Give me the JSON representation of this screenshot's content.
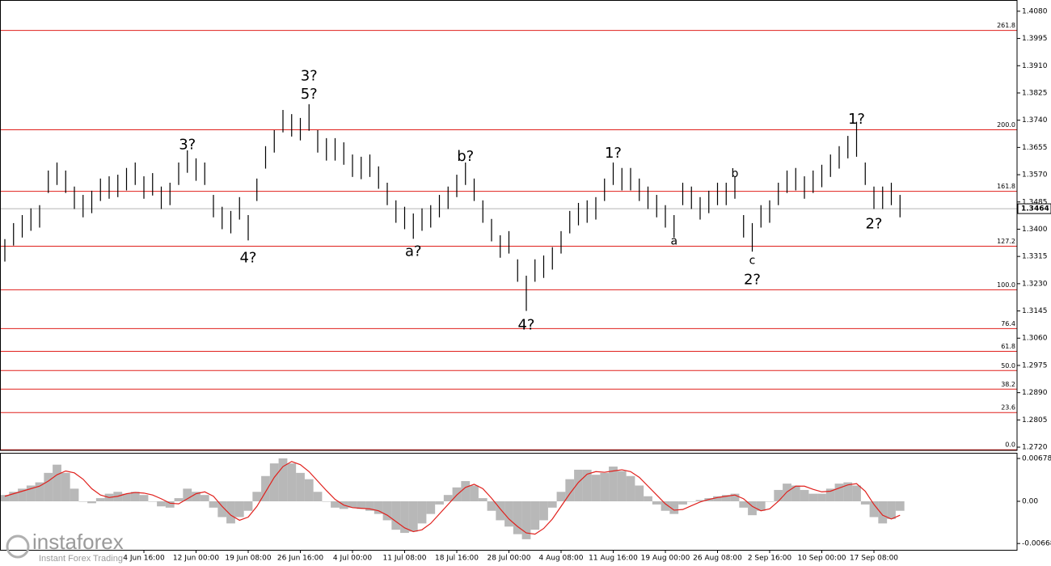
{
  "chart_data": [
    {
      "type": "ohlc",
      "color": "#000000",
      "ylim": [
        1.271,
        1.4115
      ],
      "yticks": [
        {
          "value": 1.408,
          "label": "1.4080"
        },
        1.3995,
        {
          "value": 1.391,
          "label": "1.3910"
        },
        1.3825,
        {
          "value": 1.374,
          "label": "1.3740"
        },
        1.3655,
        {
          "value": 1.357,
          "label": "1.3570"
        },
        1.3485,
        {
          "value": 1.34,
          "label": "1.3400"
        },
        1.3315,
        {
          "value": 1.323,
          "label": "1.3230"
        },
        1.3145,
        {
          "value": 1.306,
          "label": "1.3060"
        },
        1.2975,
        {
          "value": 1.289,
          "label": "1.2890"
        },
        1.2805,
        {
          "value": 1.272,
          "label": "1.2720"
        }
      ],
      "categories": [
        null,
        null,
        null,
        null,
        null,
        null,
        null,
        null,
        null,
        null,
        null,
        null,
        null,
        null,
        null,
        null,
        "4 Jun 16:00",
        null,
        null,
        null,
        null,
        null,
        "12 Jun 00:00",
        null,
        null,
        null,
        null,
        null,
        "19 Jun 08:00",
        null,
        null,
        null,
        null,
        null,
        "26 Jun 16:00",
        null,
        null,
        null,
        null,
        null,
        "4 Jul 00:00",
        null,
        null,
        null,
        null,
        null,
        "11 Jul 08:00",
        null,
        null,
        null,
        null,
        null,
        "18 Jul 16:00",
        null,
        null,
        null,
        null,
        null,
        "28 Jul 00:00",
        null,
        null,
        null,
        null,
        null,
        "4 Aug 08:00",
        null,
        null,
        null,
        null,
        null,
        "11 Aug 16:00",
        null,
        null,
        null,
        null,
        null,
        "19 Aug 00:00",
        null,
        null,
        null,
        null,
        null,
        "26 Aug 08:00",
        null,
        null,
        null,
        null,
        null,
        "2 Sep 16:00",
        null,
        null,
        null,
        null,
        null,
        "10 Sep 00:00",
        null,
        null,
        null,
        null,
        null,
        "17 Sep 08:00",
        null,
        null,
        null
      ],
      "high": [
        1.3369,
        1.3419,
        1.3444,
        1.3465,
        1.3475,
        1.3583,
        1.3608,
        1.3583,
        1.3533,
        1.3507,
        1.352,
        1.3558,
        1.3565,
        1.357,
        1.3591,
        1.3608,
        1.3565,
        1.3575,
        1.3533,
        1.3545,
        1.3608,
        1.3646,
        1.3621,
        1.3608,
        1.3507,
        1.347,
        1.3457,
        1.35,
        1.3444,
        1.3558,
        1.3659,
        1.3709,
        1.3772,
        1.3759,
        1.3747,
        1.379,
        1.3709,
        1.3684,
        1.3684,
        1.3671,
        1.3633,
        1.3626,
        1.3633,
        1.3596,
        1.3545,
        1.349,
        1.347,
        1.3449,
        1.3465,
        1.3475,
        1.3507,
        1.3533,
        1.357,
        1.3608,
        1.3558,
        1.349,
        1.3432,
        1.3381,
        1.3394,
        1.3306,
        1.3255,
        1.3306,
        1.3318,
        1.3344,
        1.3394,
        1.3457,
        1.3482,
        1.349,
        1.35,
        1.3558,
        1.3608,
        1.3591,
        1.3591,
        1.3558,
        1.3533,
        1.3507,
        1.3475,
        1.3444,
        1.3545,
        1.3533,
        1.35,
        1.352,
        1.3545,
        1.3545,
        1.3565,
        1.3444,
        1.3419,
        1.3475,
        1.349,
        1.3545,
        1.3583,
        1.3591,
        1.3565,
        1.3583,
        1.3601,
        1.3633,
        1.3659,
        1.3691,
        1.3735,
        1.3608,
        1.3533,
        1.3533,
        1.3545,
        1.3507
      ],
      "low": [
        1.3299,
        1.3349,
        1.3374,
        1.3395,
        1.3405,
        1.3513,
        1.3538,
        1.3513,
        1.3463,
        1.3437,
        1.345,
        1.3488,
        1.3495,
        1.35,
        1.3521,
        1.3538,
        1.3495,
        1.3505,
        1.3463,
        1.3475,
        1.3538,
        1.3576,
        1.3551,
        1.3538,
        1.3437,
        1.34,
        1.3387,
        1.343,
        1.3365,
        1.3488,
        1.3589,
        1.3639,
        1.3702,
        1.3689,
        1.3677,
        1.3707,
        1.3639,
        1.3614,
        1.3614,
        1.3601,
        1.3563,
        1.3556,
        1.3563,
        1.3526,
        1.3475,
        1.342,
        1.34,
        1.337,
        1.3395,
        1.3405,
        1.3437,
        1.3463,
        1.35,
        1.3538,
        1.3488,
        1.342,
        1.3362,
        1.3311,
        1.3324,
        1.3236,
        1.3145,
        1.3236,
        1.3248,
        1.3274,
        1.3324,
        1.3387,
        1.3412,
        1.342,
        1.343,
        1.3488,
        1.3538,
        1.3521,
        1.3521,
        1.3488,
        1.3463,
        1.3437,
        1.3405,
        1.3374,
        1.3475,
        1.3463,
        1.343,
        1.345,
        1.3475,
        1.3475,
        1.3495,
        1.3374,
        1.333,
        1.3405,
        1.342,
        1.3475,
        1.3513,
        1.3521,
        1.3495,
        1.3513,
        1.3531,
        1.3563,
        1.3589,
        1.3621,
        1.3626,
        1.3538,
        1.3463,
        1.3463,
        1.3475,
        1.3437
      ],
      "last_price": 1.3464,
      "fib_color": "#e0201c",
      "fib_levels": [
        {
          "label": "261.8",
          "price": 1.402
        },
        {
          "label": "200.0",
          "price": 1.371
        },
        {
          "label": "161.8",
          "price": 1.3518
        },
        {
          "label": "127.2",
          "price": 1.3347
        },
        {
          "label": "100.0",
          "price": 1.3211
        },
        {
          "label": "76.4",
          "price": 1.309
        },
        {
          "label": "61.8",
          "price": 1.3019
        },
        {
          "label": "50.0",
          "price": 1.2959
        },
        {
          "label": "38.2",
          "price": 1.2901
        },
        {
          "label": "23.6",
          "price": 1.2828
        },
        {
          "label": "0.0",
          "price": 1.2712
        }
      ],
      "annotations": [
        {
          "text": "3?",
          "color": "#1414e0",
          "index": 35,
          "price": 1.3876
        },
        {
          "text": "5?",
          "color": "#e0201c",
          "index": 35,
          "price": 1.382
        },
        {
          "text": "3?",
          "color": "#e0201c",
          "index": 21,
          "price": 1.3662
        },
        {
          "text": "4?",
          "color": "#e0201c",
          "index": 28,
          "price": 1.3309
        },
        {
          "text": "a?",
          "color": "#e0201c",
          "index": 47,
          "price": 1.3329
        },
        {
          "text": "b?",
          "color": "#e0201c",
          "index": 53,
          "price": 1.3626
        },
        {
          "text": "4?",
          "color": "#1414e0",
          "index": 60,
          "price": 1.31
        },
        {
          "text": "1?",
          "color": "#e0201c",
          "index": 70,
          "price": 1.3636
        },
        {
          "text": "a",
          "color": "#1414e0",
          "index": 77,
          "price": 1.3362
        },
        {
          "text": "b",
          "color": "#1414e0",
          "index": 84,
          "price": 1.3573
        },
        {
          "text": "c",
          "color": "#1414e0",
          "index": 86,
          "price": 1.3301
        },
        {
          "text": "2?",
          "color": "#e0201c",
          "index": 86,
          "price": 1.3241
        },
        {
          "text": "1?",
          "color": "#1414e0",
          "index": 98,
          "price": 1.3742
        },
        {
          "text": "2?",
          "color": "#1414e0",
          "index": 100,
          "price": 1.3415
        }
      ]
    },
    {
      "type": "macd",
      "ylim": [
        -0.00768,
        0.00768
      ],
      "yticks": [
        0.00678,
        {
          "value": 0,
          "label": "0.00"
        },
        -0.00668
      ],
      "histogram_color": "#b8b8b8",
      "signal_color": "#e0201c",
      "histogram": [
        0.001,
        0.0015,
        0.002,
        0.0025,
        0.003,
        0.0045,
        0.0058,
        0.0045,
        0.002,
        0,
        -0.0003,
        0.0005,
        0.0012,
        0.0015,
        0.0012,
        0.0015,
        0.001,
        0,
        -0.0008,
        -0.001,
        0.0005,
        0.002,
        0.0015,
        0.001,
        -0.001,
        -0.0025,
        -0.0035,
        -0.0025,
        -0.0015,
        0.0015,
        0.004,
        0.006,
        0.0068,
        0.006,
        0.0045,
        0.0035,
        0.0015,
        0,
        -0.001,
        -0.0012,
        -0.001,
        -0.0012,
        -0.0015,
        -0.002,
        -0.003,
        -0.0045,
        -0.005,
        -0.0048,
        -0.0035,
        -0.002,
        -0.0005,
        0.001,
        0.0022,
        0.0032,
        0.0025,
        0.0005,
        -0.0015,
        -0.003,
        -0.004,
        -0.0052,
        -0.006,
        -0.0045,
        -0.003,
        -0.001,
        0.0015,
        0.0035,
        0.005,
        0.005,
        0.0042,
        0.0045,
        0.0055,
        0.0048,
        0.004,
        0.0025,
        0.0008,
        -0.0005,
        -0.0015,
        -0.002,
        -0.0005,
        0,
        0.0002,
        0.0005,
        0.0008,
        0.001,
        0.0012,
        -0.001,
        -0.0022,
        -0.0015,
        0,
        0.0018,
        0.0028,
        0.0025,
        0.0018,
        0.0012,
        0.0012,
        0.002,
        0.0028,
        0.003,
        0.0025,
        -0.0005,
        -0.0025,
        -0.0035,
        -0.0028,
        -0.0015
      ],
      "signal": [
        0.0008,
        0.0012,
        0.0016,
        0.002,
        0.0024,
        0.0032,
        0.0042,
        0.0048,
        0.0045,
        0.0035,
        0.002,
        0.001,
        0.0006,
        0.0008,
        0.0012,
        0.0014,
        0.0013,
        0.001,
        0.0004,
        -0.0003,
        -0.0004,
        0.0004,
        0.0012,
        0.0015,
        0.0008,
        -0.0008,
        -0.0022,
        -0.003,
        -0.0025,
        -0.0008,
        0.0015,
        0.0038,
        0.0055,
        0.0063,
        0.0058,
        0.0047,
        0.0032,
        0.0017,
        0.0003,
        -0.0006,
        -0.001,
        -0.0011,
        -0.0012,
        -0.0015,
        -0.0022,
        -0.0032,
        -0.0042,
        -0.0048,
        -0.0045,
        -0.0035,
        -0.002,
        -0.0005,
        0.001,
        0.0022,
        0.0027,
        0.002,
        0.0005,
        -0.0012,
        -0.0028,
        -0.004,
        -0.005,
        -0.0052,
        -0.0043,
        -0.0028,
        -0.0008,
        0.0012,
        0.003,
        0.0043,
        0.0047,
        0.0046,
        0.0048,
        0.005,
        0.0047,
        0.0038,
        0.0024,
        0.001,
        -0.0004,
        -0.0014,
        -0.0013,
        -0.0007,
        -0.0001,
        0.0003,
        0.0006,
        0.0008,
        0.001,
        0.0004,
        -0.0008,
        -0.0015,
        -0.0012,
        0,
        0.0015,
        0.0024,
        0.0024,
        0.0019,
        0.0015,
        0.0016,
        0.0021,
        0.0026,
        0.0028,
        0.0016,
        -0.0005,
        -0.0022,
        -0.0028,
        -0.0022
      ]
    }
  ],
  "watermark": {
    "brand": "instaforex",
    "tagline": "Instant Forex Trading"
  }
}
